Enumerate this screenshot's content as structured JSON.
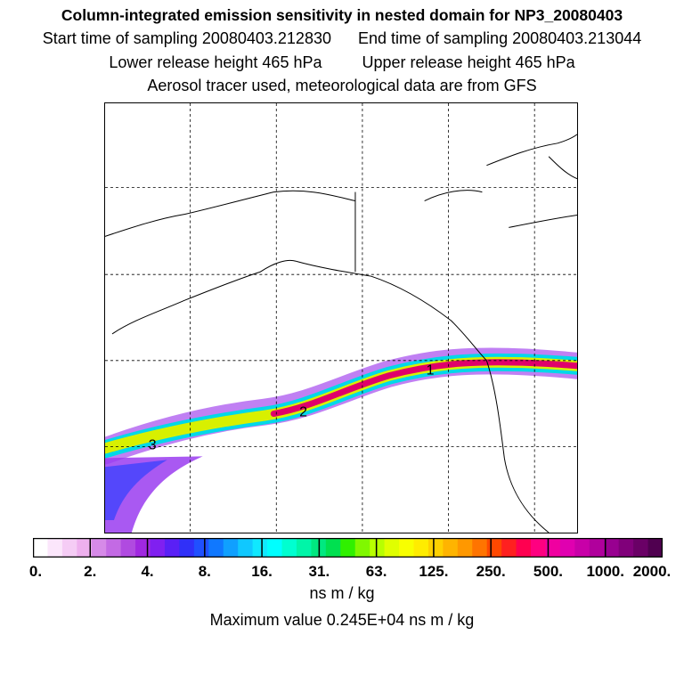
{
  "header": {
    "title": "Column-integrated emission sensitivity in nested domain for NP3_20080403",
    "start": "Start time of sampling 20080403.212830",
    "end": "End time of sampling 20080403.213044",
    "lower": "Lower release height  465 hPa",
    "upper": "Upper release height  465 hPa",
    "tracer": "Aerosol tracer used, meteorological data are from GFS"
  },
  "map": {
    "markers": [
      "1",
      "2",
      "3"
    ],
    "colors": {
      "coast": "#000000",
      "grid": "#000000",
      "plume_core": "#e0006a",
      "plume_mid": "#ffe000",
      "plume_outer": "#00e0c0",
      "plume_edge": "#6a2cff"
    }
  },
  "legend": {
    "ticks": [
      "0.",
      "2.",
      "4.",
      "8.",
      "16.",
      "31.",
      "63.",
      "125.",
      "250.",
      "500.",
      "1000.",
      "2000."
    ],
    "units": "ns m / kg",
    "max_value": "Maximum value  0.245E+04 ns m / kg",
    "colors": [
      "#ffffff",
      "#fbe6fb",
      "#f5ccf5",
      "#eeb0ee",
      "#d68ae8",
      "#c36ae4",
      "#b04ae0",
      "#a028e0",
      "#8020f0",
      "#5a20f5",
      "#3030f8",
      "#2050ff",
      "#1078ff",
      "#10a0ff",
      "#10c8ff",
      "#10e8ff",
      "#00ffff",
      "#00ffd0",
      "#00f5a8",
      "#00e880",
      "#00e050",
      "#30f000",
      "#80f800",
      "#b8ff00",
      "#e0ff00",
      "#f8ff00",
      "#ffec00",
      "#ffd000",
      "#ffb400",
      "#ff9800",
      "#ff7400",
      "#ff4800",
      "#ff2020",
      "#ff0050",
      "#ff0080",
      "#f000a0",
      "#e000b0",
      "#c800a8",
      "#b0009c",
      "#980090",
      "#80007a",
      "#6a0066",
      "#500050"
    ]
  }
}
